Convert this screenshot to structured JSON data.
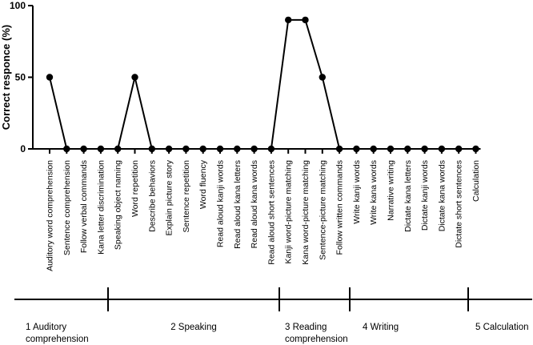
{
  "chart_data": {
    "type": "line",
    "ylabel": "Correct responce (%)",
    "ylim": [
      0,
      100
    ],
    "yticks": [
      0,
      50,
      100
    ],
    "categories": [
      "Auditory word comprehension",
      "Sentence comprehension",
      "Follow verbal commands",
      "Kana letter discrimination",
      "Speaking object naming",
      "Word repetition",
      "Describe behaviors",
      "Explain picture story",
      "Sentence repetition",
      "Word fluency",
      "Read aloud kanji words",
      "Read aloud kana letters",
      "Read aloud kana words",
      "Read aloud short sentences",
      "Kanji word-picture matching",
      "Kana word-picture matching",
      "Sentence-picture matching",
      "Follow written commands",
      "Write kanji words",
      "Write kana words",
      "Narrative writing",
      "Dictate kana letters",
      "Dictate kanji words",
      "Dictate kana words",
      "Dictate short sentences",
      "Calculation"
    ],
    "values": [
      50,
      0,
      0,
      0,
      0,
      50,
      0,
      0,
      0,
      0,
      0,
      0,
      0,
      0,
      90,
      90,
      50,
      0,
      0,
      0,
      0,
      0,
      0,
      0,
      0,
      0
    ],
    "sections": [
      {
        "lines": [
          "1 Auditory",
          "comprehension"
        ],
        "start": 0,
        "end": 3
      },
      {
        "lines": [
          "2 Speaking"
        ],
        "start": 4,
        "end": 13
      },
      {
        "lines": [
          "3 Reading",
          "comprehension"
        ],
        "start": 14,
        "end": 17
      },
      {
        "lines": [
          "4 Writing"
        ],
        "start": 18,
        "end": 24
      },
      {
        "lines": [
          "5 Calculation"
        ],
        "start": 25,
        "end": 25
      }
    ]
  }
}
